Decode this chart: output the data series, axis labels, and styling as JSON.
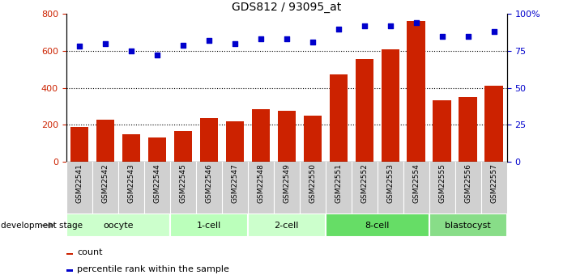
{
  "title": "GDS812 / 93095_at",
  "samples": [
    "GSM22541",
    "GSM22542",
    "GSM22543",
    "GSM22544",
    "GSM22545",
    "GSM22546",
    "GSM22547",
    "GSM22548",
    "GSM22549",
    "GSM22550",
    "GSM22551",
    "GSM22552",
    "GSM22553",
    "GSM22554",
    "GSM22555",
    "GSM22556",
    "GSM22557"
  ],
  "counts": [
    190,
    228,
    150,
    132,
    168,
    235,
    220,
    285,
    278,
    250,
    475,
    555,
    608,
    760,
    335,
    350,
    410
  ],
  "percentiles": [
    78,
    80,
    75,
    72,
    79,
    82,
    80,
    83,
    83,
    81,
    90,
    92,
    92,
    94,
    85,
    85,
    88
  ],
  "stages": [
    {
      "label": "oocyte",
      "start": 0,
      "end": 3,
      "color": "#ccffcc"
    },
    {
      "label": "1-cell",
      "start": 4,
      "end": 6,
      "color": "#bbffbb"
    },
    {
      "label": "2-cell",
      "start": 7,
      "end": 9,
      "color": "#ccffcc"
    },
    {
      "label": "8-cell",
      "start": 10,
      "end": 13,
      "color": "#66dd66"
    },
    {
      "label": "blastocyst",
      "start": 14,
      "end": 16,
      "color": "#88dd88"
    }
  ],
  "bar_color": "#cc2200",
  "dot_color": "#0000cc",
  "ylim_left": [
    0,
    800
  ],
  "ylim_right": [
    0,
    100
  ],
  "yticks_left": [
    0,
    200,
    400,
    600,
    800
  ],
  "yticks_right": [
    0,
    25,
    50,
    75,
    100
  ],
  "yticklabels_right": [
    "0",
    "25",
    "50",
    "75",
    "100%"
  ],
  "grid_values": [
    200,
    400,
    600
  ],
  "legend_count_label": "count",
  "legend_pct_label": "percentile rank within the sample",
  "dev_stage_label": "development stage",
  "tick_label_color_left": "#cc2200",
  "tick_label_color_right": "#0000cc"
}
